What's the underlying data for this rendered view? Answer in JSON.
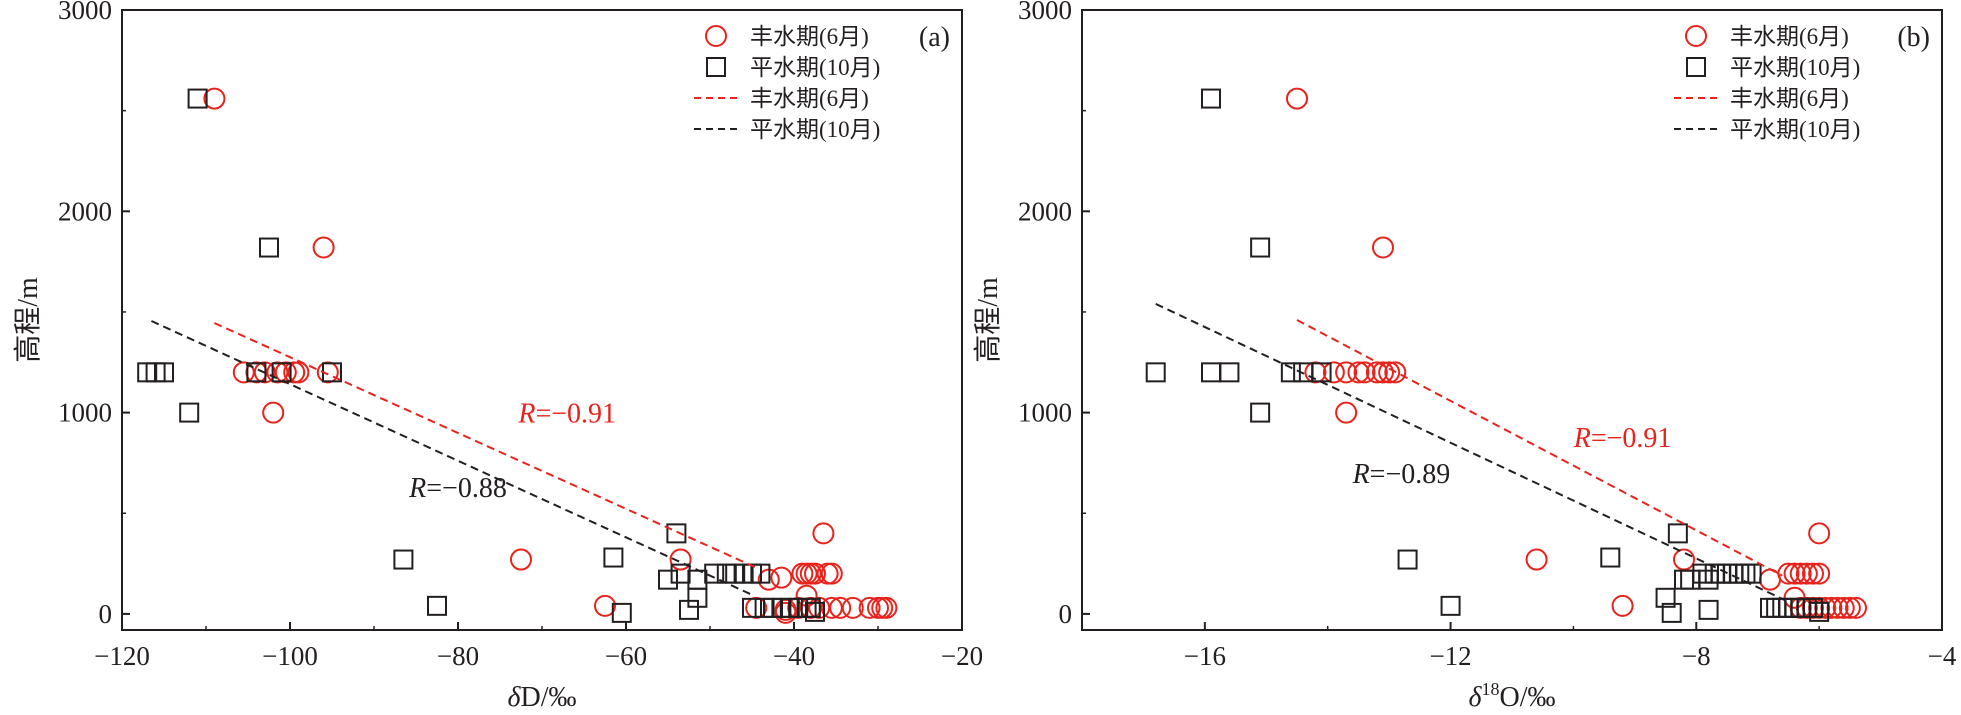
{
  "chart_data": [
    {
      "type": "scatter",
      "panel_label": "(a)",
      "xlabel_italic": "δ",
      "xlabel_rest": "D/‰",
      "ylabel": "高程/m",
      "xlim": [
        -120,
        -20
      ],
      "ylim": [
        -80,
        3000
      ],
      "xticks": [
        "−120",
        "−100",
        "−80",
        "−60",
        "−40",
        "−20"
      ],
      "xtick_values": [
        -120,
        -100,
        -80,
        -60,
        -40,
        -20
      ],
      "yticks": [
        "0",
        "1000",
        "2000",
        "3000"
      ],
      "ytick_values": [
        0,
        1000,
        2000,
        3000
      ],
      "legend": {
        "position": "top-right",
        "entries": [
          "丰水期(6月)",
          "平水期(10月)",
          "丰水期(6月)",
          "平水期(10月)"
        ]
      },
      "annotations": [
        {
          "italic": "R",
          "rest": "=−0.91",
          "color": "#e8231c",
          "x": -67,
          "y": 950
        },
        {
          "italic": "R",
          "rest": "=−0.88",
          "color": "#231f20",
          "x": -80,
          "y": 580
        }
      ],
      "series": [
        {
          "name": "丰水期(6月)",
          "marker": "circle",
          "color": "#e8231c",
          "x": [
            -109,
            -96,
            -102,
            -105.5,
            -104,
            -103,
            -101.5,
            -100.5,
            -99.5,
            -99,
            -95.5,
            -72.5,
            -62.5,
            -53.5,
            -36.5,
            -43,
            -41.5,
            -39,
            -38.5,
            -38,
            -37.5,
            -36,
            -35.5,
            -41,
            -38.5,
            -44.5,
            -39.5,
            -38,
            -37,
            -35.5,
            -34.5,
            -33,
            -31,
            -30,
            -29.5,
            -29,
            -41
          ],
          "y": [
            2560,
            1820,
            1000,
            1200,
            1200,
            1200,
            1200,
            1200,
            1200,
            1200,
            1200,
            270,
            40,
            270,
            400,
            170,
            180,
            200,
            200,
            200,
            200,
            200,
            200,
            20,
            90,
            30,
            30,
            30,
            30,
            30,
            30,
            30,
            30,
            30,
            30,
            30,
            5
          ]
        },
        {
          "name": "平水期(10月)",
          "marker": "square",
          "color": "#231f20",
          "x": [
            -111,
            -102.5,
            -117,
            -116,
            -115,
            -112,
            -104,
            -101,
            -95,
            -86.5,
            -82.5,
            -61.5,
            -60.5,
            -54,
            -55,
            -53.5,
            -52.5,
            -51.5,
            -51.5,
            -49.5,
            -48,
            -47,
            -46,
            -45,
            -44,
            -45,
            -43.5,
            -42.5,
            -41.5,
            -40.5,
            -39.5,
            -38.5,
            -38,
            -37.5
          ],
          "y": [
            2560,
            1820,
            1200,
            1200,
            1200,
            1000,
            1200,
            1200,
            1200,
            270,
            40,
            280,
            5,
            400,
            170,
            200,
            20,
            80,
            170,
            200,
            200,
            200,
            200,
            200,
            200,
            30,
            30,
            30,
            30,
            30,
            30,
            30,
            30,
            10
          ]
        },
        {
          "name": "丰水期(6月)",
          "line": "dashed",
          "color": "#e8231c",
          "x": [
            -109,
            -44.5
          ],
          "y": [
            1445,
            230
          ]
        },
        {
          "name": "平水期(10月)",
          "line": "dashed",
          "color": "#231f20",
          "x": [
            -116.5,
            -45
          ],
          "y": [
            1455,
            95
          ]
        }
      ]
    },
    {
      "type": "scatter",
      "panel_label": "(b)",
      "xlabel_italic": "δ",
      "xlabel_sup": "18",
      "xlabel_rest": "O/‰",
      "ylabel": "高程/m",
      "xlim": [
        -18,
        -4
      ],
      "ylim": [
        -80,
        3000
      ],
      "xticks": [
        "−16",
        "−12",
        "−8",
        "−4"
      ],
      "xtick_values": [
        -16,
        -12,
        -8,
        -4
      ],
      "yticks": [
        "0",
        "1000",
        "2000",
        "3000"
      ],
      "ytick_values": [
        0,
        1000,
        2000,
        3000
      ],
      "legend": {
        "position": "top-right",
        "entries": [
          "丰水期(6月)",
          "平水期(10月)",
          "丰水期(6月)",
          "平水期(10月)"
        ]
      },
      "annotations": [
        {
          "italic": "R",
          "rest": "=−0.91",
          "color": "#e8231c",
          "x": -9.2,
          "y": 830
        },
        {
          "italic": "R",
          "rest": "=−0.89",
          "color": "#231f20",
          "x": -12.8,
          "y": 650
        }
      ],
      "series": [
        {
          "name": "丰水期(6月)",
          "marker": "circle",
          "color": "#e8231c",
          "x": [
            -14.5,
            -13.1,
            -13.7,
            -14.2,
            -13.9,
            -13.7,
            -13.5,
            -13.4,
            -13.2,
            -13.1,
            -13,
            -12.9,
            -10.6,
            -9.2,
            -8.2,
            -6.8,
            -6.5,
            -6.4,
            -6.3,
            -6.2,
            -6.1,
            -6,
            -6,
            -6.4,
            -6.3,
            -6.2,
            -6.1,
            -6,
            -5.9,
            -5.8,
            -5.7,
            -5.6,
            -5.5,
            -5.4
          ],
          "y": [
            2560,
            1820,
            1000,
            1200,
            1200,
            1200,
            1200,
            1200,
            1200,
            1200,
            1200,
            1200,
            270,
            40,
            270,
            170,
            200,
            200,
            200,
            200,
            200,
            200,
            400,
            80,
            30,
            30,
            30,
            30,
            30,
            30,
            30,
            30,
            30,
            30
          ]
        },
        {
          "name": "平水期(10月)",
          "marker": "square",
          "color": "#231f20",
          "x": [
            -15.9,
            -15.1,
            -16.8,
            -15.9,
            -15.6,
            -15.1,
            -14.6,
            -14.4,
            -14.1,
            -12.7,
            -12,
            -9.4,
            -8.5,
            -8.4,
            -8.3,
            -8.2,
            -8.1,
            -7.9,
            -7.8,
            -7.7,
            -7.6,
            -7.5,
            -7.4,
            -7.3,
            -7.2,
            -7.1,
            -7.8,
            -6.8,
            -6.7,
            -6.6,
            -6.5,
            -6.4,
            -6.3,
            -6.2,
            -6.1,
            -6
          ],
          "y": [
            2560,
            1820,
            1200,
            1200,
            1200,
            1000,
            1200,
            1200,
            1200,
            270,
            40,
            280,
            80,
            5,
            400,
            170,
            170,
            200,
            170,
            200,
            200,
            200,
            200,
            200,
            200,
            200,
            20,
            30,
            30,
            30,
            30,
            30,
            30,
            30,
            30,
            10
          ]
        },
        {
          "name": "丰水期(6月)",
          "line": "dashed",
          "color": "#e8231c",
          "x": [
            -14.5,
            -6.6
          ],
          "y": [
            1460,
            190
          ]
        },
        {
          "name": "平水期(10月)",
          "line": "dashed",
          "color": "#231f20",
          "x": [
            -16.8,
            -6.5
          ],
          "y": [
            1540,
            60
          ]
        }
      ]
    }
  ]
}
